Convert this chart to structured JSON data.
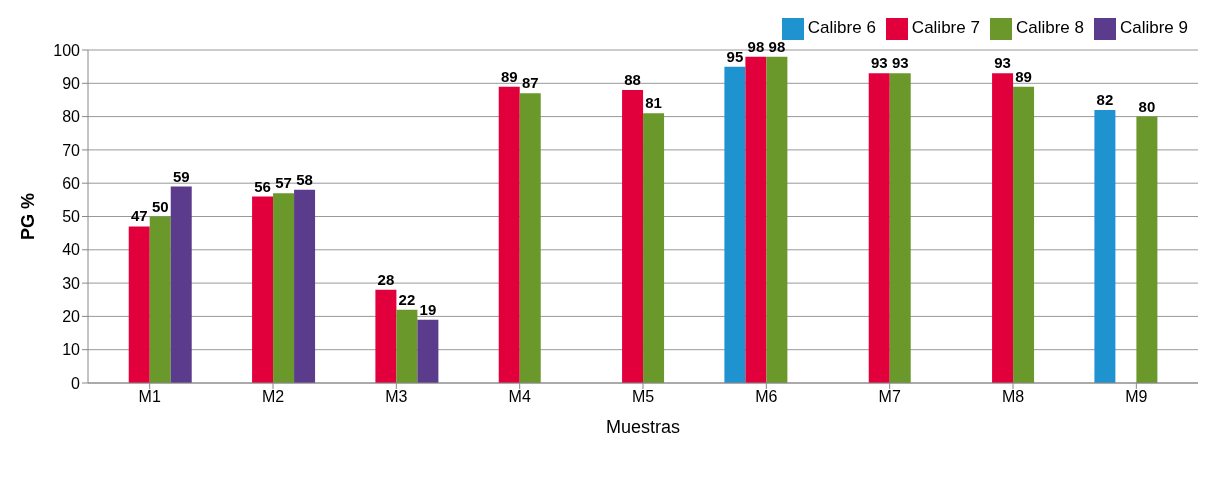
{
  "chart_data": {
    "type": "bar",
    "xlabel": "Muestras",
    "ylabel": "PG %",
    "categories": [
      "M1",
      "M2",
      "M3",
      "M4",
      "M5",
      "M6",
      "M7",
      "M8",
      "M9"
    ],
    "series": [
      {
        "name": "Calibre 6",
        "color": "#1f93cf",
        "values": [
          null,
          null,
          null,
          null,
          null,
          95,
          null,
          null,
          82
        ]
      },
      {
        "name": "Calibre 7",
        "color": "#e2003c",
        "values": [
          47,
          56,
          28,
          89,
          88,
          98,
          93,
          93,
          null
        ]
      },
      {
        "name": "Calibre 8",
        "color": "#6b982b",
        "values": [
          50,
          57,
          22,
          87,
          81,
          98,
          93,
          89,
          80
        ]
      },
      {
        "name": "Calibre 9",
        "color": "#5b3b8c",
        "values": [
          59,
          58,
          19,
          null,
          null,
          null,
          null,
          null,
          null
        ]
      }
    ],
    "ylim": [
      0,
      100
    ],
    "yticks": [
      0,
      10,
      20,
      30,
      40,
      50,
      60,
      70,
      80,
      90,
      100
    ],
    "grid": "y",
    "legend": "top right",
    "data_labels": true
  }
}
